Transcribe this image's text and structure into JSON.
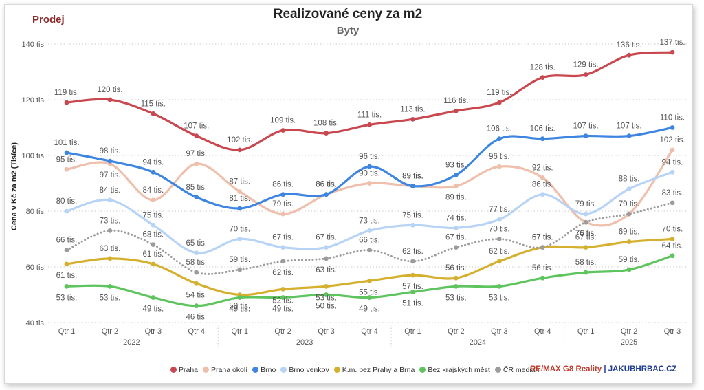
{
  "header": {
    "tag": "Prodej",
    "title": "Realizované ceny za m2",
    "subtitle": "Byty"
  },
  "brand": {
    "part1": "RE/MAX G8 Reality",
    "separator": " | ",
    "part2": "JAKUBHRBAC.CZ"
  },
  "chart_data": {
    "type": "line",
    "ylabel": "Cena v Kč za m2 (Tisíce)",
    "ylim": [
      40,
      140
    ],
    "yticks": [
      40,
      60,
      80,
      100,
      120,
      140
    ],
    "ytick_labels": [
      "40 tis.",
      "60 tis.",
      "80 tis.",
      "100 tis.",
      "120 tis.",
      "140 tis."
    ],
    "grid": true,
    "legend_position": "bottom",
    "categories": [
      "Qtr 1",
      "Qtr 2",
      "Qtr 3",
      "Qtr 4",
      "Qtr 1",
      "Qtr 2",
      "Qtr 3",
      "Qtr 4",
      "Qtr 1",
      "Qtr 2",
      "Qtr 3",
      "Qtr 4",
      "Qtr 1",
      "Qtr 2",
      "Qtr 3"
    ],
    "years": [
      {
        "label": "2022",
        "quarters": 4
      },
      {
        "label": "2023",
        "quarters": 4
      },
      {
        "label": "2024",
        "quarters": 4
      },
      {
        "label": "2025",
        "quarters": 3
      }
    ],
    "series": [
      {
        "name": "Praha",
        "color": "#c9484f",
        "dashed": false,
        "values": [
          119,
          120,
          115,
          107,
          102,
          109,
          108,
          111,
          113,
          116,
          119,
          128,
          129,
          136,
          137
        ]
      },
      {
        "name": "Praha okolí",
        "color": "#efbfac",
        "dashed": false,
        "values": [
          95,
          97,
          84,
          97,
          87,
          79,
          86,
          90,
          89,
          89,
          96,
          92,
          76,
          79,
          102
        ]
      },
      {
        "name": "Brno",
        "color": "#3d85e0",
        "dashed": false,
        "values": [
          101,
          98,
          94,
          85,
          81,
          86,
          86,
          96,
          89,
          93,
          106,
          106,
          107,
          107,
          110
        ]
      },
      {
        "name": "Brno venkov",
        "color": "#b7d3f5",
        "dashed": false,
        "values": [
          80,
          84,
          75,
          65,
          70,
          67,
          67,
          73,
          75,
          74,
          77,
          86,
          79,
          88,
          94
        ]
      },
      {
        "name": "K.m. bez Prahy a Brna",
        "color": "#d4b02e",
        "dashed": false,
        "values": [
          61,
          63,
          61,
          54,
          50,
          52,
          53,
          55,
          57,
          56,
          62,
          67,
          67,
          69,
          70
        ]
      },
      {
        "name": "Bez krajských měst",
        "color": "#5ec45e",
        "dashed": false,
        "values": [
          53,
          53,
          49,
          46,
          49,
          49,
          50,
          49,
          51,
          53,
          53,
          56,
          58,
          59,
          64
        ]
      },
      {
        "name": "ČR medián",
        "color": "#9c9c9c",
        "dashed": true,
        "values": [
          66,
          73,
          68,
          58,
          59,
          62,
          63,
          66,
          62,
          67,
          70,
          67,
          76,
          79,
          83
        ]
      }
    ]
  }
}
